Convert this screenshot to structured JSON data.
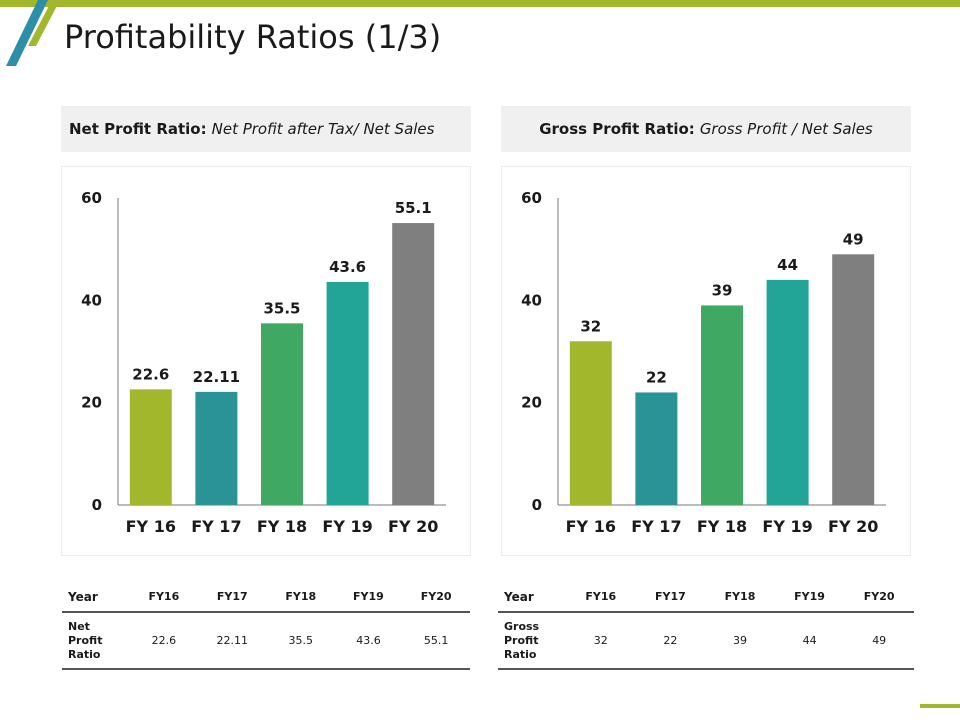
{
  "page": {
    "title": "Profitability Ratios (1/3)"
  },
  "colors": {
    "accent": "#a3b72c",
    "teal_dark": "#2a9396",
    "green": "#3fa862",
    "teal": "#22a596",
    "gray": "#7f7f7f",
    "deco_teal": "#2d8fa6"
  },
  "panels": [
    {
      "formula_label": "Net Profit Ratio:",
      "formula_text": "Net Profit after Tax/ Net Sales",
      "table": {
        "header_label": "Year",
        "row_label": [
          "Net",
          "Profit",
          "Ratio"
        ],
        "years": [
          "FY16",
          "FY17",
          "FY18",
          "FY19",
          "FY20"
        ],
        "values": [
          "22.6",
          "22.11",
          "35.5",
          "43.6",
          "55.1"
        ]
      }
    },
    {
      "formula_label": "Gross Profit Ratio:",
      "formula_text": "Gross Profit / Net Sales",
      "table": {
        "header_label": "Year",
        "row_label": [
          "Gross",
          "Profit",
          "Ratio"
        ],
        "years": [
          "FY16",
          "FY17",
          "FY18",
          "FY19",
          "FY20"
        ],
        "values": [
          "32",
          "22",
          "39",
          "44",
          "49"
        ]
      }
    }
  ],
  "chart_data": [
    {
      "type": "bar",
      "title": "Net Profit Ratio",
      "categories": [
        "FY 16",
        "FY 17",
        "FY 18",
        "FY 19",
        "FY 20"
      ],
      "values": [
        22.6,
        22.11,
        35.5,
        43.6,
        55.1
      ],
      "data_labels": [
        "22.6",
        "22.11",
        "35.5",
        "43.6",
        "55.1"
      ],
      "bar_colors": [
        "#a3b72c",
        "#2a9396",
        "#3fa862",
        "#22a596",
        "#7f7f7f"
      ],
      "yticks": [
        0,
        20,
        40,
        60
      ],
      "ylim": [
        0,
        60
      ],
      "xlabel": "",
      "ylabel": "",
      "grid": false,
      "legend": "none"
    },
    {
      "type": "bar",
      "title": "Gross Profit Ratio",
      "categories": [
        "FY 16",
        "FY 17",
        "FY 18",
        "FY 19",
        "FY 20"
      ],
      "values": [
        32,
        22,
        39,
        44,
        49
      ],
      "data_labels": [
        "32",
        "22",
        "39",
        "44",
        "49"
      ],
      "bar_colors": [
        "#a3b72c",
        "#2a9396",
        "#3fa862",
        "#22a596",
        "#7f7f7f"
      ],
      "yticks": [
        0,
        20,
        40,
        60
      ],
      "ylim": [
        0,
        60
      ],
      "xlabel": "",
      "ylabel": "",
      "grid": false,
      "legend": "none"
    }
  ]
}
